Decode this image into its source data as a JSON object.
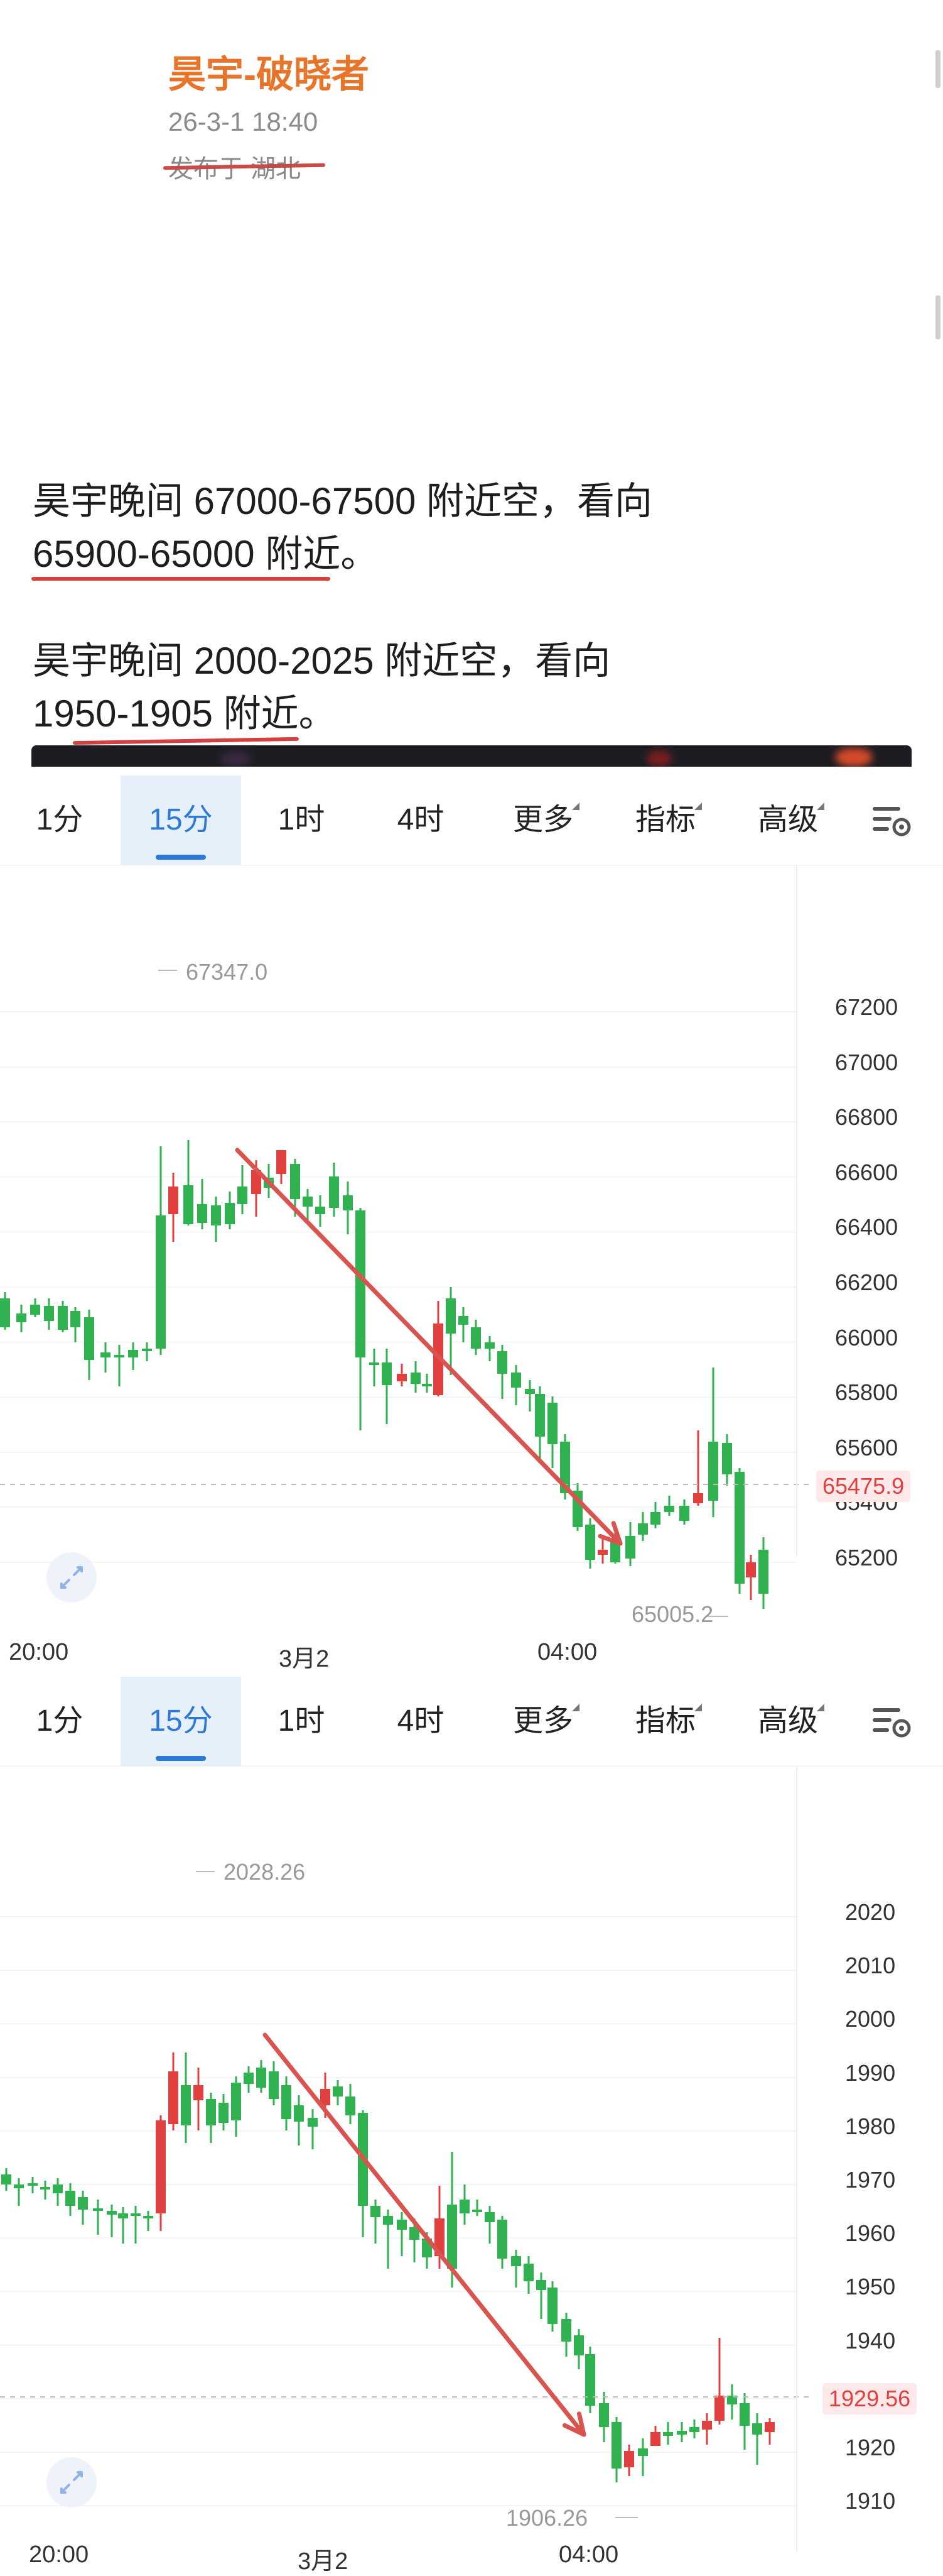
{
  "post": {
    "author": "昊宇-破晓者",
    "datetime": "26-3-1 18:40",
    "location": "发布于 湖北",
    "lines": [
      "昊宇晚间  67000-67500 附近空，看向",
      "65900-65000 附近。",
      "昊宇晚间  2000-2025 附近空，看向",
      "1950-1905 附近。"
    ]
  },
  "toolbar": {
    "tabs": [
      "1分",
      "15分",
      "1时",
      "4时",
      "更多",
      "指标",
      "高级"
    ],
    "active_tab": "15分"
  },
  "charts": [
    {
      "price_ticks": [
        "67200",
        "67000",
        "66800",
        "66600",
        "66400",
        "66200",
        "66000",
        "65800",
        "65600",
        "65400",
        "65200"
      ],
      "time_labels": [
        "20:00",
        "3月2",
        "04:00"
      ],
      "high_label": "67347.0",
      "low_label": "65005.2",
      "current_price": "65475.9"
    },
    {
      "price_ticks": [
        "2020",
        "2010",
        "2000",
        "1990",
        "1980",
        "1970",
        "1960",
        "1950",
        "1940",
        "1930",
        "1920",
        "1910"
      ],
      "time_labels": [
        "20:00",
        "3月2",
        "04:00"
      ],
      "high_label": "2028.26",
      "low_label": "1906.26",
      "current_price": "1929.56"
    }
  ],
  "colors": {
    "up": "#e0413f",
    "down": "#2fb24f",
    "active_tab": "#2d7ad6",
    "author": "#e8742a",
    "arrow": "#d9534f"
  },
  "icons": {
    "settings": "chart-settings-icon",
    "expand": "expand-icon"
  }
}
